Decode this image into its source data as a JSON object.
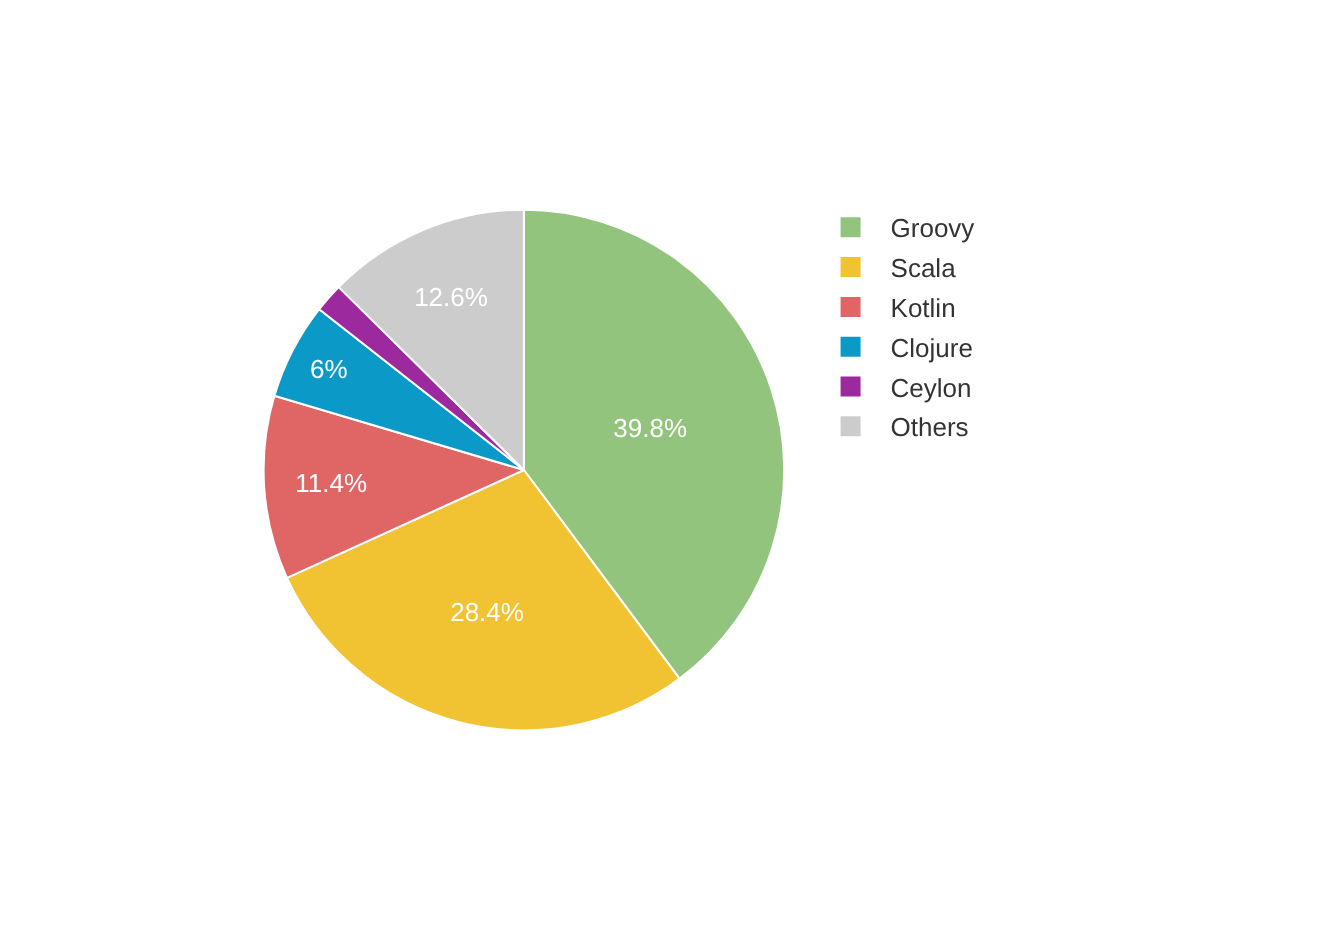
{
  "chart_data": {
    "type": "pie",
    "categories": [
      "Groovy",
      "Scala",
      "Kotlin",
      "Clojure",
      "Ceylon",
      "Others"
    ],
    "values": [
      39.8,
      28.4,
      11.4,
      6,
      1.8,
      12.6
    ],
    "colors": [
      "#93c47d",
      "#f1c232",
      "#e06666",
      "#0b9ac8",
      "#9c2a9e",
      "#cccccc"
    ],
    "value_labels": [
      "39.8%",
      "28.4%",
      "11.4%",
      "6%",
      null,
      "12.6%"
    ],
    "legend": "right"
  }
}
